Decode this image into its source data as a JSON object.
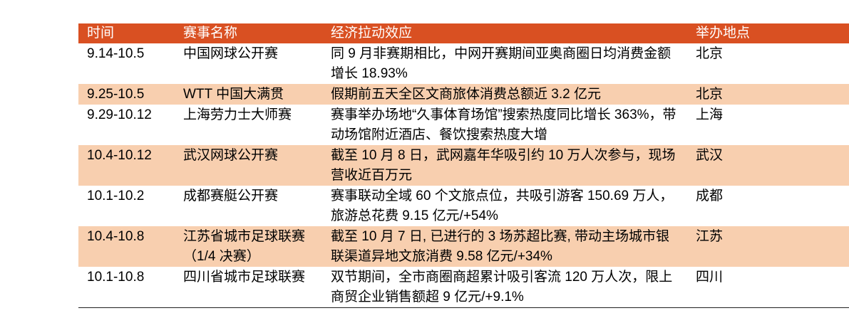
{
  "colors": {
    "header_bg": "#D95022",
    "header_text": "#FFFFFF",
    "row_alt_bg": "#F8CFAF",
    "body_text": "#000000",
    "bottom_border": "#1F1F1F",
    "page_bg": "#FFFFFF"
  },
  "table": {
    "columns": [
      {
        "key": "time",
        "label": "时间"
      },
      {
        "key": "event",
        "label": "赛事名称"
      },
      {
        "key": "effect",
        "label": "经济拉动效应"
      },
      {
        "key": "location",
        "label": "举办地点"
      }
    ],
    "rows": [
      {
        "time": "9.14-10.5",
        "event": "中国网球公开赛",
        "effect": "同 9 月非赛期相比，中网开赛期间亚奥商圈日均消费金额增长 18.93%",
        "location": "北京"
      },
      {
        "time": "9.25-10.5",
        "event": "WTT 中国大满贯",
        "effect": "假期前五天全区文商旅体消费总额近 3.2 亿元",
        "location": "北京"
      },
      {
        "time": "9.29-10.12",
        "event": "上海劳力士大师赛",
        "effect": "赛事举办场地“久事体育场馆”搜索热度同比增长 363%，带动场馆附近酒店、餐饮搜索热度大增",
        "location": "上海"
      },
      {
        "time": "10.4-10.12",
        "event": "武汉网球公开赛",
        "effect": "截至 10 月 8 日，武网嘉年华吸引约 10 万人次参与，现场营收近百万元",
        "location": "武汉"
      },
      {
        "time": "10.1-10.2",
        "event": "成都赛艇公开赛",
        "effect": "赛事联动全域 60 个文旅点位，共吸引游客 150.69 万人，旅游总花费 9.15 亿元/+54%",
        "location": "成都"
      },
      {
        "time": "10.4-10.8",
        "event": "江苏省城市足球联赛（1/4 决赛）",
        "effect": "截至 10 月 7 日, 已进行的 3 场苏超比赛, 带动主场城市银联渠道异地文旅消费 9.58 亿元/+34%",
        "location": "江苏"
      },
      {
        "time": "10.1-10.8",
        "event": "四川省城市足球联赛",
        "effect": "双节期间，全市商圈商超累计吸引客流 120 万人次，限上商贸企业销售额超 9 亿元/+9.1%",
        "location": "四川"
      }
    ]
  }
}
